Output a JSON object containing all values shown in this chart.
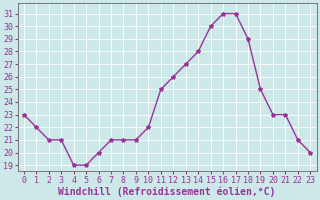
{
  "x": [
    0,
    1,
    2,
    3,
    4,
    5,
    6,
    7,
    8,
    9,
    10,
    11,
    12,
    13,
    14,
    15,
    16,
    17,
    18,
    19,
    20,
    21,
    22,
    23
  ],
  "y": [
    23,
    22,
    21,
    21,
    19,
    19,
    20,
    21,
    21,
    21,
    22,
    25,
    26,
    27,
    28,
    30,
    31,
    31,
    29,
    25,
    23,
    23,
    21,
    20
  ],
  "line_color": "#993399",
  "marker": "*",
  "bg_color": "#cce8e8",
  "grid_color": "#ffffff",
  "xlabel": "Windchill (Refroidissement éolien,°C)",
  "ylabel_ticks": [
    19,
    20,
    21,
    22,
    23,
    24,
    25,
    26,
    27,
    28,
    29,
    30,
    31
  ],
  "ylim": [
    18.5,
    31.8
  ],
  "xlim": [
    -0.5,
    23.5
  ],
  "xlabel_color": "#993399",
  "tick_label_color": "#993399",
  "axis_label_fontsize": 7,
  "tick_fontsize": 6,
  "linewidth": 1.0,
  "markersize": 3
}
